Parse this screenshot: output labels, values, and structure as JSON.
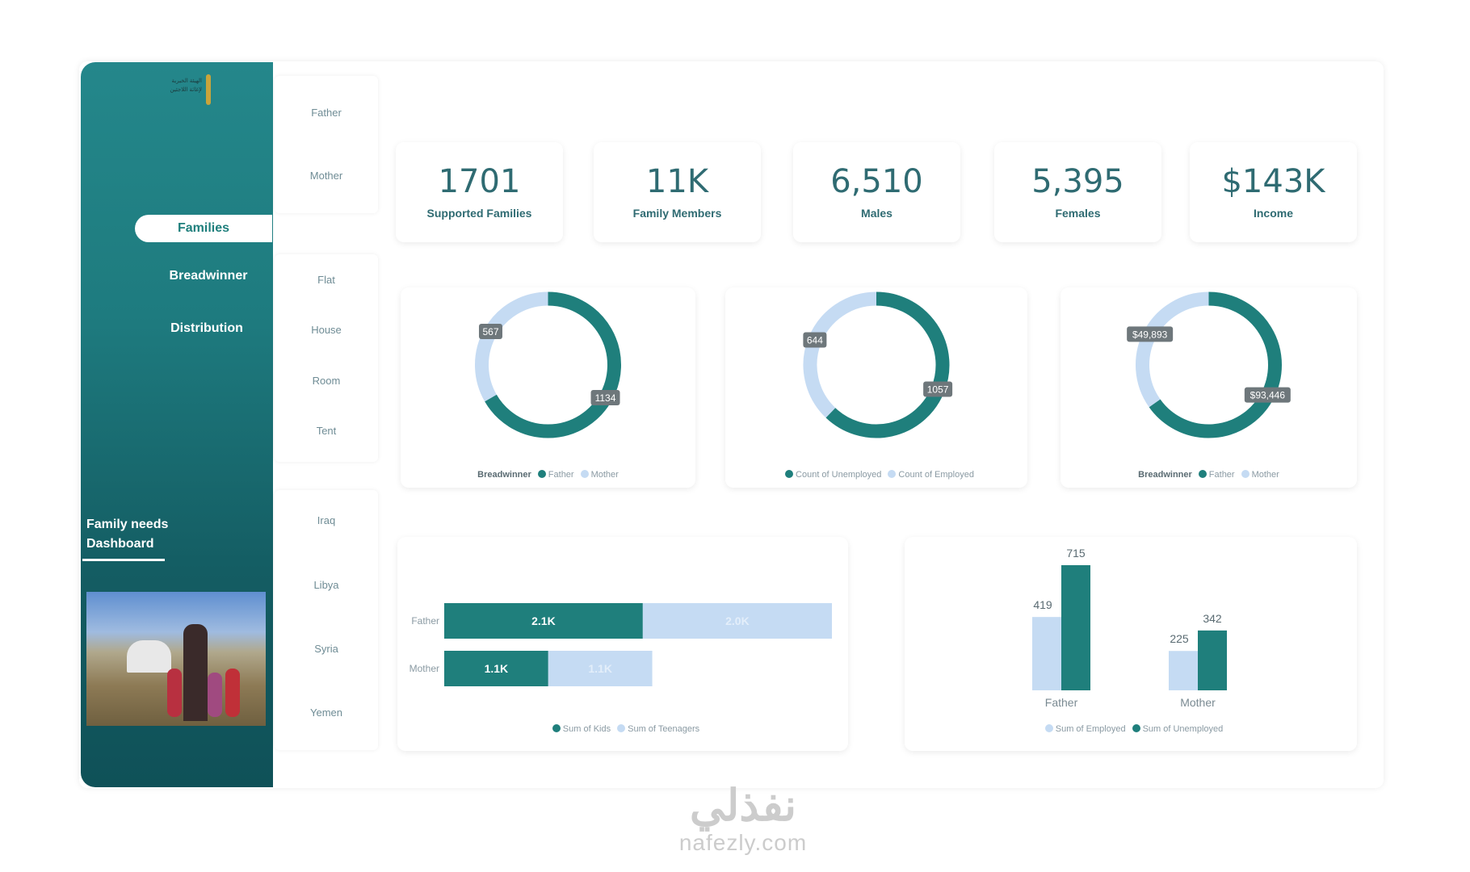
{
  "colors": {
    "primary": "#1f7f7c",
    "secondary": "#c5dbf3",
    "sidebar": "#23868a"
  },
  "sidebar": {
    "logo_text": [
      "الهيئة الخيرية",
      "لإغاثة اللاجئين"
    ],
    "nav": [
      {
        "label": "Families",
        "selected": true
      },
      {
        "label": "Breadwinner"
      },
      {
        "label": "Distribution"
      }
    ],
    "title_line1": "Family needs",
    "title_line2": "Dashboard",
    "photo": "photo of family outside tent"
  },
  "filters": {
    "breadwinner": [
      "Father",
      "Mother"
    ],
    "housing": [
      "Flat",
      "House",
      "Room",
      "Tent"
    ],
    "country": [
      "Iraq",
      "Libya",
      "Syria",
      "Yemen"
    ]
  },
  "kpis": [
    {
      "value": "1701",
      "label": "Supported Families"
    },
    {
      "value": "11K",
      "label": "Family Members"
    },
    {
      "value": "6,510",
      "label": "Males"
    },
    {
      "value": "5,395",
      "label": "Females"
    },
    {
      "value": "$143K",
      "label": "Income"
    }
  ],
  "chart_data": [
    {
      "type": "pie",
      "donut": true,
      "legend_title": "Breadwinner",
      "slices": [
        {
          "name": "Father",
          "value": 1134,
          "label": "1134"
        },
        {
          "name": "Mother",
          "value": 567,
          "label": "567"
        }
      ]
    },
    {
      "type": "pie",
      "donut": true,
      "legend_title": "",
      "slices": [
        {
          "name": "Count of Unemployed",
          "value": 1057,
          "label": "1057"
        },
        {
          "name": "Count of Employed",
          "value": 644,
          "label": "644"
        }
      ]
    },
    {
      "type": "pie",
      "donut": true,
      "legend_title": "Breadwinner",
      "slices": [
        {
          "name": "Father",
          "value": 93446,
          "label": "$93,446"
        },
        {
          "name": "Mother",
          "value": 49893,
          "label": "$49,893"
        }
      ]
    },
    {
      "type": "bar",
      "orientation": "horizontal",
      "stacked": true,
      "categories": [
        "Father",
        "Mother"
      ],
      "series": [
        {
          "name": "Sum of Kids",
          "values": [
            2100,
            1100
          ],
          "labels": [
            "2.1K",
            "1.1K"
          ]
        },
        {
          "name": "Sum of Teenagers",
          "values": [
            2000,
            1100
          ],
          "labels": [
            "2.0K",
            "1.1K"
          ]
        }
      ],
      "legend": "bottom"
    },
    {
      "type": "bar",
      "orientation": "vertical",
      "categories": [
        "Father",
        "Mother"
      ],
      "series": [
        {
          "name": "Sum of Employed",
          "values": [
            419,
            225
          ]
        },
        {
          "name": "Sum of Unemployed",
          "values": [
            715,
            342
          ]
        }
      ],
      "legend": "bottom"
    }
  ],
  "watermark": {
    "arabic": "نفذلي",
    "latin": "nafezly.com"
  }
}
